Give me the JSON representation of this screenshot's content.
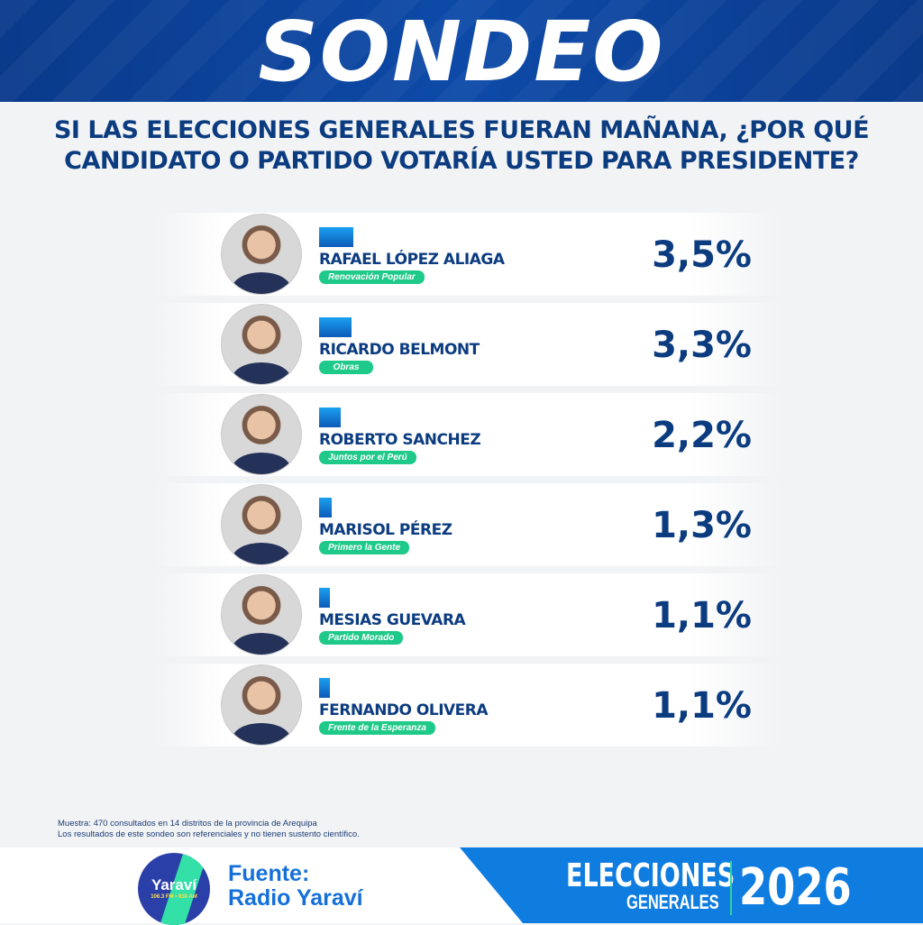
{
  "header": {
    "title": "SONDEO"
  },
  "question": "SI LAS ELECCIONES GENERALES FUERAN MAÑANA, ¿POR QUÉ CANDIDATO O PARTIDO VOTARÍA USTED PARA PRESIDENTE?",
  "chart_data": {
    "type": "bar",
    "title": "SI LAS ELECCIONES GENERALES FUERAN MAÑANA, ¿POR QUÉ CANDIDATO O PARTIDO VOTARÍA USTED PARA PRESIDENTE?",
    "unit": "%",
    "categories": [
      "RAFAEL LÓPEZ ALIAGA",
      "RICARDO BELMONT",
      "ROBERTO SANCHEZ",
      "MARISOL PÉREZ",
      "MESIAS GUEVARA",
      "FERNANDO OLIVERA"
    ],
    "parties": [
      "Renovación Popular",
      "Obras",
      "Juntos por el Perú",
      "Primero la Gente",
      "Partido Morado",
      "Frente de la Esperanza"
    ],
    "values": [
      3.5,
      3.3,
      2.2,
      1.3,
      1.1,
      1.1
    ],
    "labels": [
      "3,5%",
      "3,3%",
      "2,2%",
      "1,3%",
      "1,1%",
      "1,1%"
    ]
  },
  "notes": [
    "Muestra: 470 consultados en 14 distritos de la provincia de Arequipa",
    "Los resultados de este sondeo son referenciales y no tienen sustento científico."
  ],
  "footer": {
    "logo_text": "Yaraví",
    "logo_sub": "106.3 FM • 930 AM",
    "fuente_label": "Fuente:",
    "fuente_name": "Radio Yaraví",
    "brand_line1": "ELECCIONES",
    "brand_line2": "GENERALES",
    "year": "2026"
  },
  "colors": {
    "navy": "#0c3c80",
    "accent": "#0f7de0",
    "green": "#1fc98a"
  }
}
